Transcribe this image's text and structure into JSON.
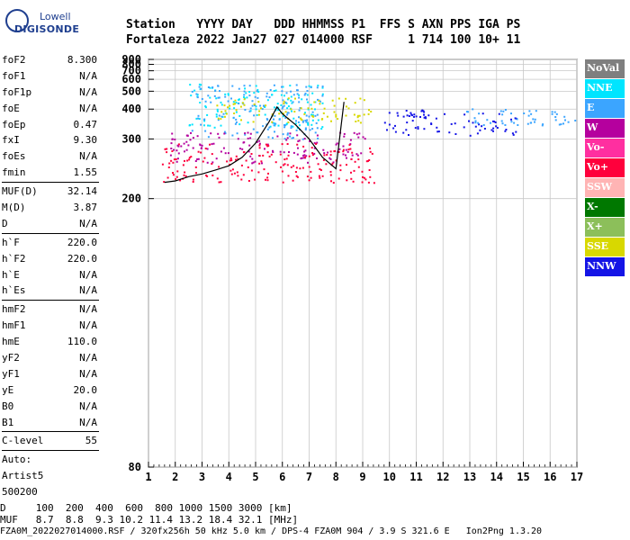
{
  "logo": {
    "line1": "Lowell",
    "line2": "DIGISONDE"
  },
  "header": {
    "line1": "Station   YYYY DAY   DDD HHMMSS P1  FFS S AXN PPS IGA PS",
    "line2": "Fortaleza 2022 Jan27 027 014000 RSF     1 714 100 10+ 11"
  },
  "params": [
    {
      "k": "foF2",
      "v": "8.300"
    },
    {
      "k": "foF1",
      "v": "N/A"
    },
    {
      "k": "foF1p",
      "v": "N/A"
    },
    {
      "k": "foE",
      "v": "N/A"
    },
    {
      "k": "foEp",
      "v": "0.47"
    },
    {
      "k": "fxI",
      "v": "9.30"
    },
    {
      "k": "foEs",
      "v": "N/A"
    },
    {
      "k": "fmin",
      "v": "1.55"
    },
    {
      "k": "MUF(D)",
      "v": "32.14",
      "sep": true
    },
    {
      "k": "M(D)",
      "v": "3.87"
    },
    {
      "k": "D",
      "v": "N/A"
    },
    {
      "k": "h`F",
      "v": "220.0",
      "sep": true
    },
    {
      "k": "h`F2",
      "v": "220.0"
    },
    {
      "k": "h`E",
      "v": "N/A"
    },
    {
      "k": "h`Es",
      "v": "N/A"
    },
    {
      "k": "hmF2",
      "v": "N/A",
      "sep": true
    },
    {
      "k": "hmF1",
      "v": "N/A"
    },
    {
      "k": "hmE",
      "v": "110.0"
    },
    {
      "k": "yF2",
      "v": "N/A"
    },
    {
      "k": "yF1",
      "v": "N/A"
    },
    {
      "k": "yE",
      "v": "20.0"
    },
    {
      "k": "B0",
      "v": "N/A"
    },
    {
      "k": "B1",
      "v": "N/A"
    },
    {
      "k": "C-level",
      "v": "55",
      "sep": true
    },
    {
      "k": "Auto:",
      "v": "",
      "sep": true
    },
    {
      "k": "Artist5",
      "v": ""
    },
    {
      "k": "500200",
      "v": ""
    }
  ],
  "legend": [
    {
      "label": "NoVal",
      "color": "#7f7f7f"
    },
    {
      "label": "NNE",
      "color": "#00e5ff"
    },
    {
      "label": "E",
      "color": "#3ba5ff"
    },
    {
      "label": "W",
      "color": "#b5009e"
    },
    {
      "label": "Vo-",
      "color": "#ff2fa0"
    },
    {
      "label": "Vo+",
      "color": "#ff003c"
    },
    {
      "label": "SSW",
      "color": "#ffb4b4"
    },
    {
      "label": "X-",
      "color": "#007800"
    },
    {
      "label": "X+",
      "color": "#8cbf5a"
    },
    {
      "label": "SSE",
      "color": "#d8d800"
    },
    {
      "label": "NNW",
      "color": "#1414e6"
    }
  ],
  "footer": {
    "d_line": "D     100  200  400  600  800 1000 1500 3000 [km]",
    "muf_line": "MUF   8.7  8.8  9.3 10.2 11.4 13.2 18.4 32.1 [MHz]",
    "file_line": "FZA0M_2022027014000.RSF / 320fx256h 50 kHz 5.0 km / DPS-4 FZA0M 904 / 3.9 S 321.6 E   Ion2Png 1.3.20"
  },
  "chart_data": {
    "type": "scatter",
    "title": "",
    "xlabel": "",
    "ylabel": "",
    "xlim": [
      1,
      17
    ],
    "ylim": [
      80,
      900
    ],
    "xticks": [
      "1",
      "2",
      "3",
      "4",
      "5",
      "6",
      "7",
      "8",
      "9",
      "10",
      "11",
      "12",
      "13",
      "14",
      "15",
      "16",
      "17"
    ],
    "yticks": [
      "80",
      "200",
      "300",
      "400",
      "500",
      "600",
      "700",
      "800",
      "900"
    ],
    "yscale": "reciprocal",
    "grid": true,
    "trace": {
      "name": "",
      "x": [
        1.6,
        2.0,
        2.5,
        3.0,
        3.5,
        4.0,
        4.5,
        5.0,
        5.5,
        5.8,
        6.0,
        6.5,
        7.0,
        7.5,
        8.0,
        8.3
      ],
      "y": [
        220,
        222,
        228,
        232,
        238,
        245,
        260,
        290,
        350,
        410,
        380,
        340,
        300,
        260,
        240,
        435
      ]
    },
    "echo_clusters": [
      {
        "name": "NNE",
        "x": [
          2.5,
          7.5
        ],
        "y": [
          330,
          560
        ]
      },
      {
        "name": "E",
        "x": [
          2.6,
          7.5
        ],
        "y": [
          300,
          560
        ]
      },
      {
        "name": "SSE",
        "x": [
          3.5,
          9.3
        ],
        "y": [
          350,
          460
        ]
      },
      {
        "name": "W",
        "x": [
          1.8,
          9.2
        ],
        "y": [
          250,
          320
        ]
      },
      {
        "name": "Vo+",
        "x": [
          1.5,
          9.4
        ],
        "y": [
          220,
          290
        ]
      },
      {
        "name": "NNW",
        "x": [
          9.8,
          14.8
        ],
        "y": [
          310,
          400
        ]
      },
      {
        "name": "E",
        "x": [
          12.5,
          17.0
        ],
        "y": [
          340,
          410
        ]
      }
    ]
  }
}
